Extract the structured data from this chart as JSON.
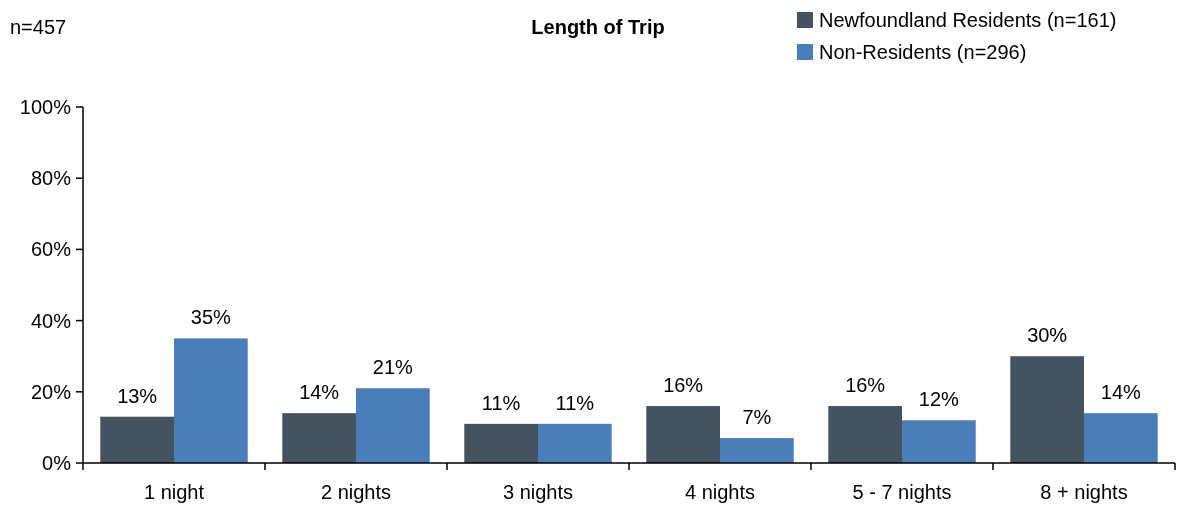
{
  "chart_data": {
    "type": "bar",
    "title": "Length of Trip",
    "annotations": [
      "n=457"
    ],
    "categories": [
      "1 night",
      "2 nights",
      "3 nights",
      "4 nights",
      "5 - 7 nights",
      "8 + nights"
    ],
    "series": [
      {
        "name": "Newfoundland Residents (n=161)",
        "color": "#44535e",
        "values": [
          13,
          14,
          11,
          16,
          16,
          30
        ],
        "value_labels": [
          "13%",
          "14%",
          "11%",
          "16%",
          "16%",
          "30%"
        ]
      },
      {
        "name": "Non-Residents (n=296)",
        "color": "#4a7ebb",
        "values": [
          35,
          21,
          11,
          7,
          12,
          14
        ],
        "value_labels": [
          "35%",
          "21%",
          "11%",
          "7%",
          "12%",
          "14%"
        ]
      }
    ],
    "ylim": [
      0,
      100
    ],
    "yticks": [
      {
        "value": 0,
        "label": "0%"
      },
      {
        "value": 20,
        "label": "20%"
      },
      {
        "value": 40,
        "label": "40%"
      },
      {
        "value": 60,
        "label": "60%"
      },
      {
        "value": 80,
        "label": "80%"
      },
      {
        "value": 100,
        "label": "100%"
      }
    ],
    "grid": false,
    "legend": "top right"
  }
}
